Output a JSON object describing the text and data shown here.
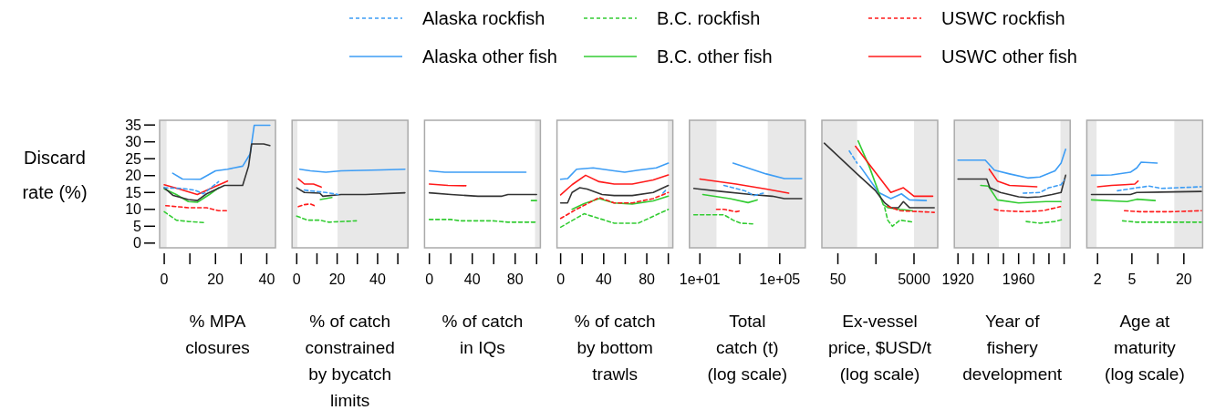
{
  "chart_data": [
    {
      "type": "line",
      "xlabel": "% MPA\nclosures",
      "ylabel": "Discard rate (%)",
      "legend": "top",
      "xlim": [
        -1.8,
        43.4
      ],
      "xticks": [
        0,
        {
          "value": 10,
          "label": null
        },
        20,
        {
          "value": 30,
          "label": null
        },
        40
      ],
      "ylim": [
        -1.4,
        36.4
      ],
      "yticks": [
        0,
        5,
        10,
        15,
        20,
        25,
        30,
        35
      ],
      "bands": [
        {
          "axis": "x",
          "from": -1.8,
          "to": 0.9,
          "color": "#e8e8e8"
        },
        {
          "axis": "x",
          "from": 24.7,
          "to": 43.4,
          "color": "#e8e8e8"
        }
      ],
      "series": [
        {
          "name": "Alaska rockfish",
          "color": "#3d9df5",
          "line_style": "dashed",
          "x": [
            0,
            7.1,
            11.8,
            15.3,
            21.2
          ],
          "values": [
            16.4,
            16.2,
            15.7,
            14.6,
            18.2
          ]
        },
        {
          "name": "Alaska other fish",
          "color": "#3d9df5",
          "line_style": "solid",
          "x": [
            3.3,
            7.1,
            14.1,
            20,
            24.7,
            30.6,
            33.5,
            35.1,
            41.2
          ],
          "values": [
            20.7,
            19.0,
            18.9,
            21.4,
            21.9,
            22.8,
            26.4,
            34.9,
            34.9
          ]
        },
        {
          "name": "B.C. rockfish",
          "color": "#33cc33",
          "line_style": "dashed",
          "x": [
            0,
            4.7,
            9.4,
            15.3
          ],
          "values": [
            9.3,
            6.8,
            6.4,
            6.1
          ]
        },
        {
          "name": "B.C. other fish",
          "color": "#33cc33",
          "line_style": "solid",
          "x": [
            0,
            4.7,
            9.4,
            12.9,
            17.6,
            21.2
          ],
          "values": [
            16.1,
            14.4,
            12.3,
            12.1,
            14.4,
            16.4
          ]
        },
        {
          "name": "USWC rockfish",
          "color": "#ff1a1a",
          "line_style": "dashed",
          "x": [
            0.6,
            9.4,
            16.5,
            21.2,
            24.7
          ],
          "values": [
            11.1,
            10.5,
            10.5,
            9.6,
            9.6
          ]
        },
        {
          "name": "USWC other fish",
          "color": "#ff1a1a",
          "line_style": "solid",
          "x": [
            0,
            5.9,
            12.9,
            18.8,
            24.7
          ],
          "values": [
            17.3,
            16.0,
            14.4,
            16.4,
            18.4
          ]
        },
        {
          "color": "#333333",
          "line_style": "solid",
          "x": [
            0,
            3.5,
            9.4,
            12.9,
            16.5,
            23.5,
            30.6,
            32.9,
            34.1,
            38.8,
            41.2
          ],
          "values": [
            16.4,
            14.1,
            12.9,
            12.6,
            14.6,
            17.1,
            17.1,
            22.8,
            29.4,
            29.4,
            28.9
          ]
        }
      ]
    },
    {
      "type": "line",
      "xlabel": "% of catch\nconstrained\nby bycatch\nlimits",
      "tick_labels": "x",
      "xlim": [
        -2.3,
        55
      ],
      "xticks": [
        0,
        {
          "value": 10,
          "label": null
        },
        20,
        {
          "value": 30,
          "label": null
        },
        40,
        {
          "value": 50,
          "label": null
        }
      ],
      "ylim": [
        -1.4,
        36.4
      ],
      "bands": [
        {
          "axis": "x",
          "from": -2.3,
          "to": 0.3,
          "color": "#e8e8e8"
        },
        {
          "axis": "x",
          "from": 20.2,
          "to": 55,
          "color": "#e8e8e8"
        }
      ],
      "series": [
        {
          "color": "#3d9df5",
          "line_style": "dashed",
          "x": [
            3.8,
            14.4,
            20.5
          ],
          "values": [
            15.7,
            15.0,
            14.4
          ]
        },
        {
          "color": "#3d9df5",
          "line_style": "solid",
          "x": [
            1.5,
            6.8,
            14.4,
            22,
            41.7,
            53.5
          ],
          "values": [
            21.9,
            21.4,
            21.0,
            21.4,
            21.7,
            21.9
          ]
        },
        {
          "color": "#33cc33",
          "line_style": "dashed",
          "x": [
            0,
            5.3,
            11.4,
            15.9,
            29.5
          ],
          "values": [
            8.0,
            6.8,
            6.8,
            6.2,
            6.6
          ]
        },
        {
          "color": "#33cc33",
          "line_style": "solid",
          "x": [
            11.7,
            17.4
          ],
          "values": [
            12.9,
            13.5
          ]
        },
        {
          "color": "#ff1a1a",
          "line_style": "dashed",
          "x": [
            0.8,
            3.8,
            6.8,
            9.8
          ],
          "values": [
            10.8,
            11.4,
            11.6,
            10.8
          ]
        },
        {
          "color": "#ff1a1a",
          "line_style": "solid",
          "x": [
            0.8,
            3.8,
            8.3,
            12.1
          ],
          "values": [
            19.0,
            17.5,
            17.5,
            16.6
          ]
        },
        {
          "color": "#333333",
          "line_style": "solid",
          "x": [
            0,
            3.8,
            11.4,
            12.9,
            22,
            34.1,
            53.5
          ],
          "values": [
            16.4,
            15.0,
            14.8,
            13.9,
            14.4,
            14.4,
            14.9
          ]
        }
      ]
    },
    {
      "type": "line",
      "xlabel": "% of catch\nin IQs",
      "tick_labels": "x",
      "xlim": [
        -4.5,
        103.5
      ],
      "xticks": [
        0,
        {
          "value": 20,
          "label": null
        },
        40,
        {
          "value": 60,
          "label": null
        },
        80,
        {
          "value": 100,
          "label": null
        }
      ],
      "ylim": [
        -1.4,
        36.4
      ],
      "bands": [
        {
          "axis": "x",
          "from": 98.5,
          "to": 103.5,
          "color": "#e8e8e8"
        }
      ],
      "series": [
        {
          "color": "#3d9df5",
          "line_style": "solid",
          "x": [
            0,
            14.5,
            90
          ],
          "values": [
            21.4,
            21.0,
            21.0
          ]
        },
        {
          "color": "#33cc33",
          "line_style": "dashed",
          "x": [
            0,
            20.1,
            28.5,
            59.3,
            73.3,
            99.9
          ],
          "values": [
            7.0,
            7.0,
            6.6,
            6.6,
            6.2,
            6.2
          ]
        },
        {
          "color": "#33cc33",
          "line_style": "solid",
          "x": [
            95.1,
            99.9
          ],
          "values": [
            12.6,
            12.6
          ]
        },
        {
          "color": "#ff1a1a",
          "line_style": "solid",
          "x": [
            0,
            17.3,
            34.1
          ],
          "values": [
            17.5,
            17.1,
            17.0
          ]
        },
        {
          "color": "#333333",
          "line_style": "solid",
          "x": [
            0,
            20.1,
            45.3,
            67.7,
            73.3,
            99.9
          ],
          "values": [
            14.9,
            14.4,
            13.9,
            13.9,
            14.4,
            14.4
          ]
        }
      ]
    },
    {
      "type": "line",
      "xlabel": "% of catch\nby bottom\ntrawls",
      "tick_labels": "x",
      "xlim": [
        -3.4,
        104.2
      ],
      "xticks": [
        0,
        {
          "value": 20,
          "label": null
        },
        40,
        {
          "value": 60,
          "label": null
        },
        80,
        {
          "value": 100,
          "label": null
        }
      ],
      "ylim": [
        -1.4,
        36.4
      ],
      "bands": [
        {
          "axis": "x",
          "from": 99.4,
          "to": 104.2,
          "color": "#e8e8e8"
        }
      ],
      "series": [
        {
          "color": "#3d9df5",
          "line_style": "dashed",
          "x": [
            95,
            98.6
          ],
          "values": [
            14.8,
            16.0
          ]
        },
        {
          "color": "#3d9df5",
          "line_style": "solid",
          "x": [
            0,
            6.4,
            14.8,
            30.2,
            49.7,
            59.5,
            72.1,
            88.8,
            100
          ],
          "values": [
            18.9,
            19.1,
            21.9,
            22.3,
            21.4,
            21.0,
            21.6,
            22.3,
            23.7
          ]
        },
        {
          "color": "#33cc33",
          "line_style": "dashed",
          "x": [
            0,
            21.8,
            35.8,
            49.7,
            72.1,
            100
          ],
          "values": [
            4.7,
            8.7,
            7.3,
            5.9,
            5.9,
            10.0
          ]
        },
        {
          "color": "#33cc33",
          "line_style": "solid",
          "x": [
            10.6,
            21.8,
            35.8,
            49.7,
            66.5,
            86,
            100
          ],
          "values": [
            10.0,
            11.7,
            13.2,
            11.9,
            11.6,
            12.5,
            13.9
          ]
        },
        {
          "color": "#ff1a1a",
          "line_style": "dashed",
          "x": [
            0,
            13.4,
            35.8,
            49.7,
            66.5,
            86,
            100
          ],
          "values": [
            7.3,
            9.8,
            13.5,
            11.9,
            11.9,
            13.2,
            15.0
          ]
        },
        {
          "color": "#ff1a1a",
          "line_style": "solid",
          "x": [
            0,
            10.6,
            23.2,
            35.8,
            49.7,
            66.5,
            86,
            100
          ],
          "values": [
            14.3,
            17.3,
            20.1,
            18.2,
            17.5,
            17.5,
            18.7,
            20.2
          ]
        },
        {
          "color": "#333333",
          "line_style": "solid",
          "x": [
            0,
            6.4,
            10.6,
            17.6,
            24.6,
            38.5,
            49.7,
            66.5,
            86,
            100
          ],
          "values": [
            11.9,
            11.9,
            15.0,
            16.4,
            16.0,
            14.4,
            14.1,
            14.1,
            15.0,
            17.1
          ]
        }
      ]
    },
    {
      "type": "line",
      "xlabel": "Total\ncatch (t)\n(log scale)",
      "tick_labels": "x",
      "log": "x",
      "xlim": [
        3,
        1900000
      ],
      "xticks": [
        {
          "value": 10,
          "label": "1e+01"
        },
        {
          "value": 1000,
          "label": null
        },
        {
          "value": 100000,
          "label": "1e+05"
        }
      ],
      "ylim": [
        -1.4,
        36.4
      ],
      "bands": [
        {
          "axis": "x",
          "from": 3,
          "to": 68,
          "color": "#e8e8e8"
        },
        {
          "axis": "x",
          "from": 25000,
          "to": 1900000,
          "color": "#e8e8e8"
        }
      ],
      "series": [
        {
          "color": "#3d9df5",
          "line_style": "dashed",
          "x": [
            160,
            1800,
            5200,
            15000
          ],
          "values": [
            17.1,
            15.5,
            14.1,
            14.8
          ]
        },
        {
          "color": "#3d9df5",
          "line_style": "solid",
          "x": [
            460,
            21000,
            170000,
            1260000
          ],
          "values": [
            23.7,
            20.5,
            19.1,
            19.1
          ]
        },
        {
          "color": "#33cc33",
          "line_style": "dashed",
          "x": [
            5,
            160,
            460,
            1100,
            4400
          ],
          "values": [
            8.4,
            8.4,
            6.8,
            5.9,
            5.7
          ]
        },
        {
          "color": "#33cc33",
          "line_style": "solid",
          "x": [
            14,
            320,
            2600,
            7400
          ],
          "values": [
            14.4,
            13.2,
            12.0,
            12.8
          ]
        },
        {
          "color": "#ff1a1a",
          "line_style": "dashed",
          "x": [
            68,
            160,
            650,
            1100
          ],
          "values": [
            10.0,
            10.0,
            9.3,
            9.6
          ]
        },
        {
          "color": "#ff1a1a",
          "line_style": "solid",
          "x": [
            10,
            650,
            21000,
            280000
          ],
          "values": [
            19.0,
            17.5,
            16.0,
            14.8
          ]
        },
        {
          "color": "#333333",
          "line_style": "solid",
          "x": [
            5,
            115,
            3700,
            42000,
            170000,
            1260000
          ],
          "values": [
            16.2,
            15.3,
            14.4,
            13.9,
            13.2,
            13.2
          ]
        }
      ]
    },
    {
      "type": "line",
      "xlabel": "Ex-vessel\nprice, $USD/t\n(log scale)",
      "tick_labels": "x",
      "log": "x",
      "xlim": [
        19,
        21000
      ],
      "xticks": [
        50,
        {
          "value": 500,
          "label": null
        },
        5000
      ],
      "ylim": [
        -1.4,
        36.4
      ],
      "bands": [
        {
          "axis": "x",
          "from": 19,
          "to": 160,
          "color": "#e8e8e8"
        },
        {
          "axis": "x",
          "from": 5000,
          "to": 21000,
          "color": "#e8e8e8"
        }
      ],
      "series": [
        {
          "color": "#3d9df5",
          "line_style": "dashed",
          "x": [
            100,
            160
          ],
          "values": [
            27.3,
            23.7
          ]
        },
        {
          "color": "#3d9df5",
          "line_style": "solid",
          "x": [
            191,
            589,
            1230,
            2340,
            3800,
            10500
          ],
          "values": [
            22.8,
            15.0,
            13.2,
            14.6,
            12.8,
            12.6
          ]
        },
        {
          "color": "#33cc33",
          "line_style": "dashed",
          "x": [
            850,
            1020,
            1350,
            2140,
            5000
          ],
          "values": [
            10.5,
            6.8,
            5.0,
            6.8,
            6.2
          ]
        },
        {
          "color": "#33cc33",
          "line_style": "solid",
          "x": [
            170,
            331,
            776,
            1020,
            2140,
            4570
          ],
          "values": [
            30.3,
            22.8,
            11.4,
            10.5,
            10.0,
            9.6
          ]
        },
        {
          "color": "#ff1a1a",
          "line_style": "dashed",
          "x": [
            1020,
            2140,
            17000
          ],
          "values": [
            10.9,
            9.6,
            9.1
          ]
        },
        {
          "color": "#ff1a1a",
          "line_style": "solid",
          "x": [
            145,
            275,
            1230,
            2630,
            5000,
            15500
          ],
          "values": [
            28.7,
            24.6,
            15.0,
            16.4,
            13.9,
            13.9
          ]
        },
        {
          "color": "#333333",
          "line_style": "solid",
          "x": [
            22,
            160,
            490,
            850,
            1230,
            1950,
            2630,
            3800,
            17000
          ],
          "values": [
            29.6,
            20.5,
            15.5,
            11.9,
            10.5,
            10.5,
            12.3,
            10.5,
            10.5
          ]
        }
      ]
    },
    {
      "type": "line",
      "xlabel": "Year of\nfishery\ndevelopment",
      "tick_labels": "x",
      "xlim": [
        1917.6,
        1994
      ],
      "xticks": [
        1920,
        {
          "value": 1930,
          "label": null
        },
        {
          "value": 1940,
          "label": null
        },
        {
          "value": 1950,
          "label": null
        },
        1960,
        {
          "value": 1970,
          "label": null
        },
        {
          "value": 1980,
          "label": null
        },
        {
          "value": 1990,
          "label": null
        }
      ],
      "ylim": [
        -1.4,
        36.4
      ],
      "bands": [
        {
          "axis": "x",
          "from": 1917.6,
          "to": 1947,
          "color": "#e8e8e8"
        },
        {
          "axis": "x",
          "from": 1987.6,
          "to": 1994,
          "color": "#e8e8e8"
        }
      ],
      "series": [
        {
          "color": "#3d9df5",
          "line_style": "dashed",
          "x": [
            1963,
            1974,
            1980,
            1988,
            1990
          ],
          "values": [
            14.8,
            15.0,
            16.4,
            17.3,
            18.7
          ]
        },
        {
          "color": "#3d9df5",
          "line_style": "solid",
          "x": [
            1920,
            1938,
            1944,
            1954,
            1966,
            1974,
            1984,
            1988,
            1991
          ],
          "values": [
            24.6,
            24.6,
            21.6,
            20.5,
            19.3,
            19.6,
            21.4,
            23.7,
            27.8
          ]
        },
        {
          "color": "#33cc33",
          "line_style": "dashed",
          "x": [
            1965,
            1974,
            1984,
            1989
          ],
          "values": [
            6.4,
            5.9,
            6.4,
            7.0
          ]
        },
        {
          "color": "#33cc33",
          "line_style": "solid",
          "x": [
            1935,
            1940,
            1946,
            1960,
            1978,
            1988
          ],
          "values": [
            17.1,
            16.9,
            12.8,
            11.9,
            12.3,
            12.3
          ]
        },
        {
          "color": "#ff1a1a",
          "line_style": "dashed",
          "x": [
            1944,
            1948,
            1964,
            1976,
            1987.6
          ],
          "values": [
            10.0,
            9.6,
            9.3,
            9.6,
            10.8
          ]
        },
        {
          "color": "#ff1a1a",
          "line_style": "solid",
          "x": [
            1940.6,
            1946,
            1954,
            1972
          ],
          "values": [
            21.9,
            18.4,
            17.1,
            16.7
          ]
        },
        {
          "color": "#333333",
          "line_style": "solid",
          "x": [
            1920,
            1939,
            1941,
            1948,
            1960,
            1966,
            1974,
            1982,
            1988,
            1991
          ],
          "values": [
            19.0,
            19.0,
            16.4,
            15.0,
            13.7,
            13.5,
            13.7,
            14.4,
            15.0,
            20.1
          ]
        }
      ]
    },
    {
      "type": "line",
      "xlabel": "Age at\nmaturity\n(log scale)",
      "tick_labels": "x",
      "log": "x",
      "xlim": [
        1.5,
        33
      ],
      "xticks": [
        2,
        5,
        {
          "value": 10,
          "label": null
        },
        20
      ],
      "ylim": [
        -1.4,
        36.4
      ],
      "bands": [
        {
          "axis": "x",
          "from": 1.5,
          "to": 1.95,
          "color": "#e8e8e8"
        },
        {
          "axis": "x",
          "from": 15.5,
          "to": 33,
          "color": "#e8e8e8"
        }
      ],
      "series": [
        {
          "color": "#3d9df5",
          "line_style": "dashed",
          "x": [
            3.4,
            5.7,
            7.9,
            11,
            32
          ],
          "values": [
            15.5,
            16.4,
            16.9,
            16.2,
            16.7
          ]
        },
        {
          "color": "#3d9df5",
          "line_style": "solid",
          "x": [
            1.7,
            2.9,
            4.8,
            5.7,
            6.4,
            9.8
          ],
          "values": [
            20.1,
            20.2,
            21.0,
            22.3,
            24.0,
            23.7
          ]
        },
        {
          "color": "#33cc33",
          "line_style": "dashed",
          "x": [
            3.9,
            5.7,
            32
          ],
          "values": [
            6.6,
            6.2,
            6.2
          ]
        },
        {
          "color": "#33cc33",
          "line_style": "solid",
          "x": [
            1.7,
            4.4,
            5.7,
            9.3
          ],
          "values": [
            12.8,
            12.3,
            13.0,
            12.6
          ]
        },
        {
          "color": "#ff1a1a",
          "line_style": "dashed",
          "x": [
            4.1,
            6.2,
            14,
            32
          ],
          "values": [
            9.6,
            9.3,
            9.3,
            9.6
          ]
        },
        {
          "color": "#ff1a1a",
          "line_style": "solid",
          "x": [
            2.0,
            2.9,
            4.1,
            5.4,
            5.9
          ],
          "values": [
            16.7,
            17.1,
            17.3,
            17.5,
            18.4
          ]
        },
        {
          "color": "#333333",
          "line_style": "solid",
          "x": [
            1.7,
            4.8,
            5.7,
            32
          ],
          "values": [
            14.4,
            14.4,
            15.0,
            15.3
          ]
        }
      ]
    }
  ]
}
